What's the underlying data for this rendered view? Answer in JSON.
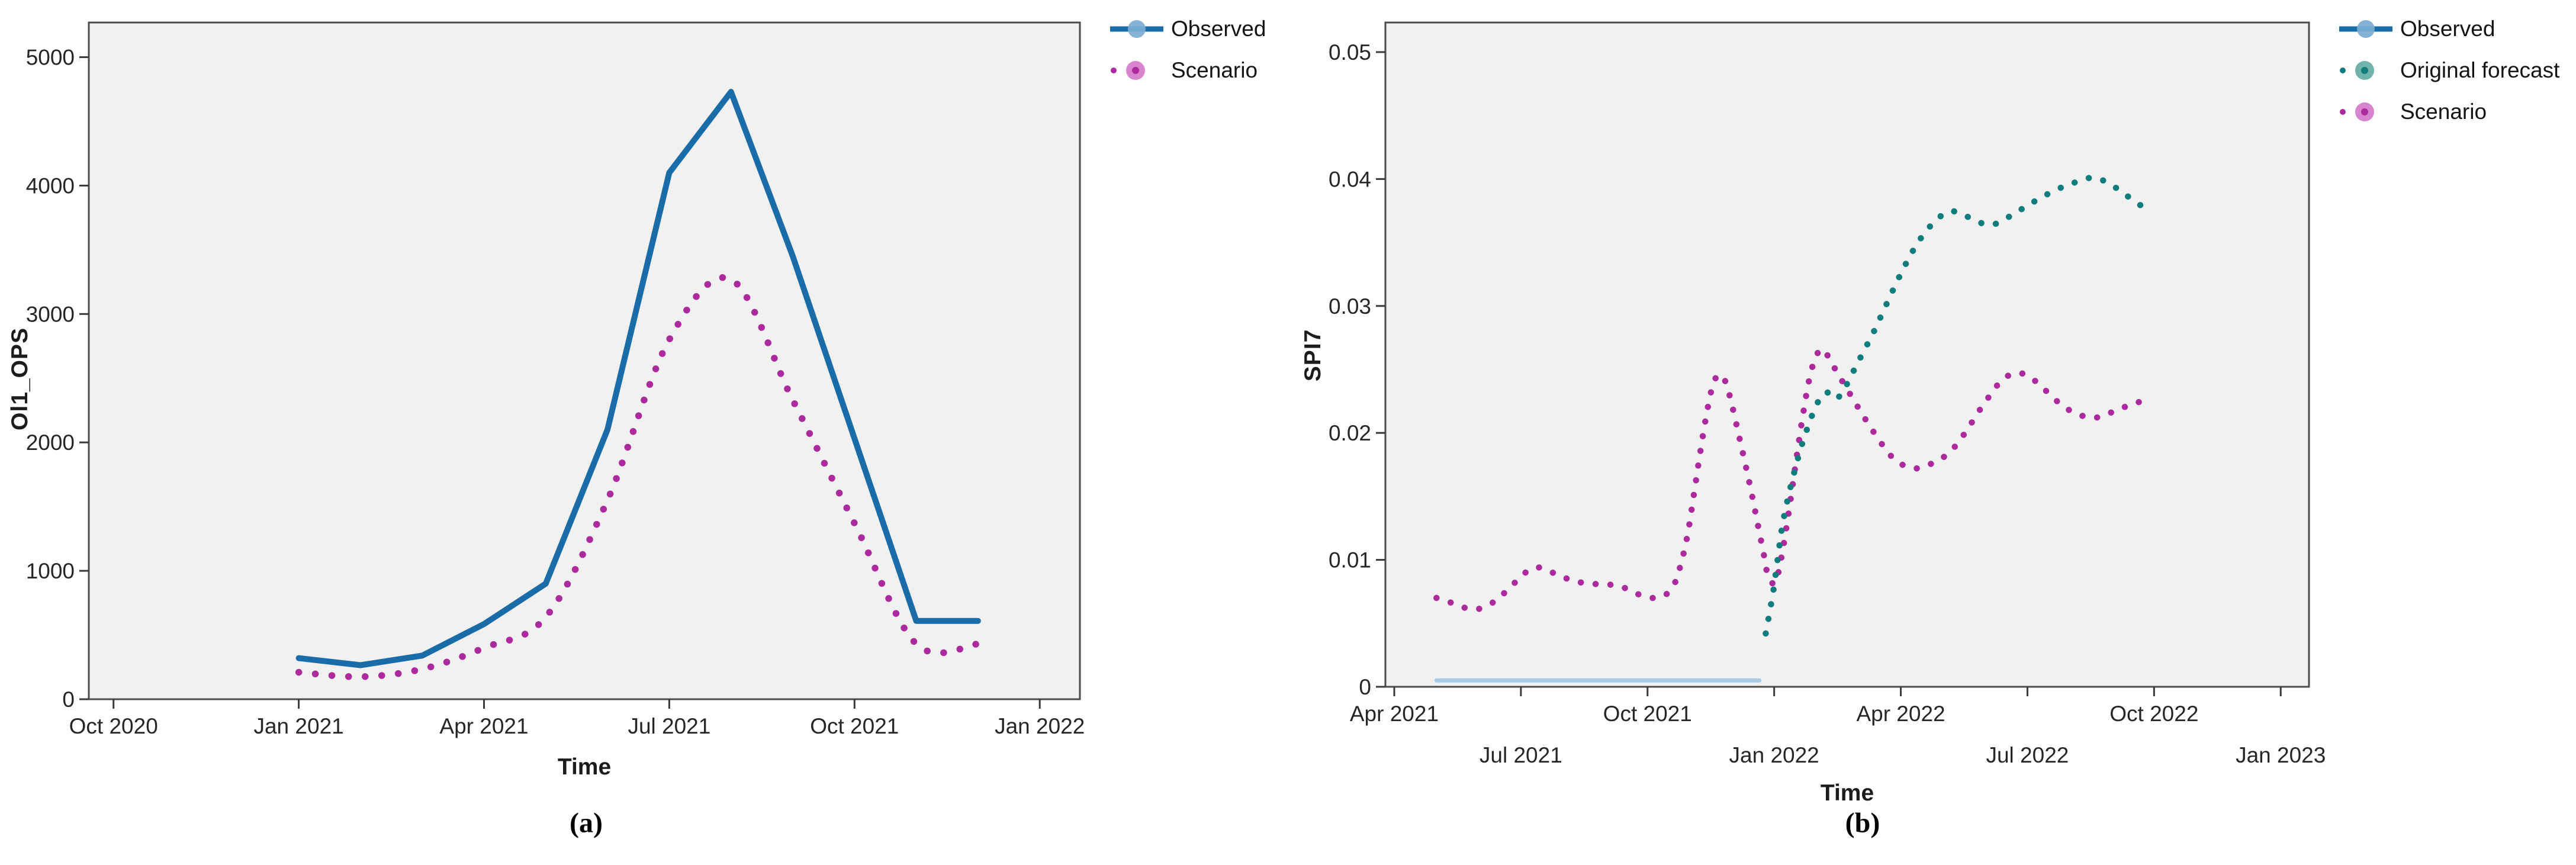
{
  "colors": {
    "observed_blue": "#1a6ca8",
    "observed_marker": "#7aadd4",
    "scenario_pink": "#ab2a9c",
    "scenario_marker": "#d478cb",
    "forecast_teal": "#117c7c",
    "forecast_marker": "#63aaa4",
    "observed_light_blue": "#a9cbe4",
    "plot_bg": "#f2f1f1",
    "frame": "#4c4c4c",
    "tick": "#3a3a3a",
    "text": "#262626"
  },
  "captions": {
    "a": "(a)",
    "b": "(b)"
  },
  "chart_data": [
    {
      "id": "a",
      "type": "line",
      "title": "",
      "xlabel": "Time",
      "ylabel": "Ol1_OPS",
      "caption": "(a)",
      "grid": false,
      "legend_position": "top-right-outside",
      "xlim": [
        -3.4,
        12.65
      ],
      "ylim": [
        0,
        5270
      ],
      "x_unit": "months from Jan 2021",
      "x_ticks": [
        {
          "m": -3,
          "label": "Oct 2020",
          "row": 0
        },
        {
          "m": 0,
          "label": "Jan 2021",
          "row": 0
        },
        {
          "m": 3,
          "label": "Apr 2021",
          "row": 0
        },
        {
          "m": 6,
          "label": "Jul 2021",
          "row": 0
        },
        {
          "m": 9,
          "label": "Oct 2021",
          "row": 0
        },
        {
          "m": 12,
          "label": "Jan 2022",
          "row": 0
        }
      ],
      "y_ticks": [
        {
          "v": 0,
          "label": "0"
        },
        {
          "v": 1000,
          "label": "1000"
        },
        {
          "v": 2000,
          "label": "2000"
        },
        {
          "v": 3000,
          "label": "3000"
        },
        {
          "v": 4000,
          "label": "4000"
        },
        {
          "v": 5000,
          "label": "5000"
        }
      ],
      "legend": [
        {
          "label": "Observed",
          "marker": "line-circle",
          "color": "observed_blue",
          "marker_fill": "observed_marker"
        },
        {
          "label": "Scenario",
          "marker": "dot-circle",
          "color": "scenario_pink",
          "marker_fill": "scenario_marker"
        }
      ],
      "series": [
        {
          "name": "Scenario",
          "style": "dots",
          "color": "scenario_pink",
          "width": 11.5,
          "gap": 28,
          "points": [
            [
              0,
              210
            ],
            [
              1,
              175
            ],
            [
              2,
              235
            ],
            [
              3,
              400
            ],
            [
              4,
              640
            ],
            [
              5,
              1550
            ],
            [
              6,
              2800
            ],
            [
              7,
              3270
            ],
            [
              8,
              2330
            ],
            [
              9,
              1370
            ],
            [
              10,
              430
            ],
            [
              11,
              430
            ]
          ]
        },
        {
          "name": "Observed",
          "style": "solid",
          "color": "observed_blue",
          "width": 10,
          "points": [
            [
              0,
              320
            ],
            [
              1,
              265
            ],
            [
              2,
              340
            ],
            [
              3,
              585
            ],
            [
              4,
              900
            ],
            [
              5,
              2100
            ],
            [
              6,
              4100
            ],
            [
              7,
              4730
            ],
            [
              8,
              3450
            ],
            [
              9,
              2030
            ],
            [
              10,
              610
            ],
            [
              11,
              610
            ]
          ]
        }
      ]
    },
    {
      "id": "b",
      "type": "line",
      "title": "",
      "xlabel": "Time",
      "ylabel": "SPI7",
      "caption": "(b)",
      "grid": false,
      "legend_position": "top-right-outside",
      "xlim": [
        -0.21,
        21.67
      ],
      "ylim": [
        0,
        0.05233
      ],
      "x_unit": "months from Apr 2021",
      "x_ticks": [
        {
          "m": 0,
          "label": "Apr 2021",
          "row": 0
        },
        {
          "m": 3,
          "label": "Jul 2021",
          "row": 1
        },
        {
          "m": 6,
          "label": "Oct 2021",
          "row": 0
        },
        {
          "m": 9,
          "label": "Jan 2022",
          "row": 1
        },
        {
          "m": 12,
          "label": "Apr 2022",
          "row": 0
        },
        {
          "m": 15,
          "label": "Jul 2022",
          "row": 1
        },
        {
          "m": 18,
          "label": "Oct 2022",
          "row": 0
        },
        {
          "m": 21,
          "label": "Jan 2023",
          "row": 1
        }
      ],
      "y_ticks": [
        {
          "v": 0,
          "label": "0"
        },
        {
          "v": 0.01,
          "label": "0.01"
        },
        {
          "v": 0.02,
          "label": "0.02"
        },
        {
          "v": 0.03,
          "label": "0.03"
        },
        {
          "v": 0.04,
          "label": "0.04"
        },
        {
          "v": 0.05,
          "label": "0.05"
        }
      ],
      "legend": [
        {
          "label": "Observed",
          "marker": "line-circle",
          "color": "observed_blue",
          "marker_fill": "observed_marker"
        },
        {
          "label": "Original forecast",
          "marker": "dot-circle",
          "color": "forecast_teal",
          "marker_fill": "forecast_marker"
        },
        {
          "label": "Scenario",
          "marker": "dot-circle",
          "color": "scenario_pink",
          "marker_fill": "scenario_marker"
        }
      ],
      "series": [
        {
          "name": "Observed",
          "style": "solid",
          "color": "observed_light_blue",
          "width": 7,
          "points": [
            [
              1.0,
              0.0005
            ],
            [
              8.65,
              0.0005
            ]
          ]
        },
        {
          "name": "Scenario",
          "style": "dots",
          "color": "scenario_pink",
          "width": 10.5,
          "gap": 25,
          "points": [
            [
              1.0,
              0.007
            ],
            [
              1.2,
              0.0068
            ],
            [
              1.45,
              0.0065
            ],
            [
              1.7,
              0.0062
            ],
            [
              1.95,
              0.0061
            ],
            [
              2.2,
              0.0064
            ],
            [
              2.45,
              0.0069
            ],
            [
              2.7,
              0.0077
            ],
            [
              2.95,
              0.0085
            ],
            [
              3.15,
              0.0091
            ],
            [
              3.35,
              0.0094
            ],
            [
              3.55,
              0.0093
            ],
            [
              3.75,
              0.009
            ],
            [
              3.95,
              0.0087
            ],
            [
              4.2,
              0.0084
            ],
            [
              4.45,
              0.0082
            ],
            [
              4.7,
              0.0081
            ],
            [
              4.95,
              0.0081
            ],
            [
              5.2,
              0.008
            ],
            [
              5.45,
              0.0078
            ],
            [
              5.7,
              0.0074
            ],
            [
              5.95,
              0.0071
            ],
            [
              6.2,
              0.007
            ],
            [
              6.45,
              0.0073
            ],
            [
              6.65,
              0.0082
            ],
            [
              6.8,
              0.0098
            ],
            [
              6.95,
              0.012
            ],
            [
              7.1,
              0.0152
            ],
            [
              7.25,
              0.0185
            ],
            [
              7.4,
              0.0215
            ],
            [
              7.55,
              0.0238
            ],
            [
              7.7,
              0.0246
            ],
            [
              7.85,
              0.024
            ],
            [
              8.0,
              0.0222
            ],
            [
              8.15,
              0.02
            ],
            [
              8.3,
              0.0178
            ],
            [
              8.45,
              0.0155
            ],
            [
              8.6,
              0.013
            ],
            [
              8.75,
              0.0105
            ],
            [
              8.85,
              0.0088
            ],
            [
              9.0,
              0.0081
            ],
            [
              9.1,
              0.009
            ],
            [
              9.25,
              0.0117
            ],
            [
              9.4,
              0.015
            ],
            [
              9.55,
              0.0185
            ],
            [
              9.7,
              0.0218
            ],
            [
              9.85,
              0.0245
            ],
            [
              10.0,
              0.0261
            ],
            [
              10.15,
              0.0266
            ],
            [
              10.3,
              0.0259
            ],
            [
              10.5,
              0.0247
            ],
            [
              10.7,
              0.0236
            ],
            [
              10.9,
              0.0225
            ],
            [
              11.1,
              0.0214
            ],
            [
              11.35,
              0.0201
            ],
            [
              11.6,
              0.0189
            ],
            [
              11.85,
              0.0179
            ],
            [
              12.1,
              0.0174
            ],
            [
              12.35,
              0.0172
            ],
            [
              12.6,
              0.0174
            ],
            [
              12.85,
              0.0178
            ],
            [
              13.1,
              0.0183
            ],
            [
              13.35,
              0.0192
            ],
            [
              13.6,
              0.0204
            ],
            [
              13.85,
              0.0217
            ],
            [
              14.1,
              0.0229
            ],
            [
              14.35,
              0.024
            ],
            [
              14.6,
              0.0246
            ],
            [
              14.85,
              0.0247
            ],
            [
              15.1,
              0.0243
            ],
            [
              15.35,
              0.0236
            ],
            [
              15.6,
              0.0228
            ],
            [
              15.85,
              0.0221
            ],
            [
              16.1,
              0.0216
            ],
            [
              16.35,
              0.0213
            ],
            [
              16.6,
              0.0212
            ],
            [
              16.85,
              0.0214
            ],
            [
              17.1,
              0.0218
            ],
            [
              17.35,
              0.0221
            ],
            [
              17.6,
              0.0224
            ],
            [
              17.85,
              0.0225
            ]
          ]
        },
        {
          "name": "Original forecast",
          "style": "dots",
          "color": "forecast_teal",
          "width": 10.5,
          "gap": 25,
          "points": [
            [
              8.8,
              0.0042
            ],
            [
              8.9,
              0.006
            ],
            [
              9.0,
              0.008
            ],
            [
              9.1,
              0.0105
            ],
            [
              9.2,
              0.0128
            ],
            [
              9.35,
              0.0152
            ],
            [
              9.5,
              0.0172
            ],
            [
              9.65,
              0.019
            ],
            [
              9.8,
              0.0205
            ],
            [
              9.95,
              0.0218
            ],
            [
              10.1,
              0.0228
            ],
            [
              10.25,
              0.0232
            ],
            [
              10.4,
              0.0227
            ],
            [
              10.55,
              0.0229
            ],
            [
              10.7,
              0.0237
            ],
            [
              10.9,
              0.025
            ],
            [
              11.1,
              0.0263
            ],
            [
              11.35,
              0.0279
            ],
            [
              11.6,
              0.0297
            ],
            [
              11.85,
              0.0315
            ],
            [
              12.1,
              0.0332
            ],
            [
              12.35,
              0.0347
            ],
            [
              12.6,
              0.0359
            ],
            [
              12.85,
              0.0368
            ],
            [
              13.1,
              0.0374
            ],
            [
              13.35,
              0.0374
            ],
            [
              13.6,
              0.037
            ],
            [
              13.85,
              0.0366
            ],
            [
              14.1,
              0.0364
            ],
            [
              14.35,
              0.0366
            ],
            [
              14.6,
              0.0371
            ],
            [
              14.85,
              0.0376
            ],
            [
              15.1,
              0.0381
            ],
            [
              15.35,
              0.0386
            ],
            [
              15.6,
              0.039
            ],
            [
              15.85,
              0.0394
            ],
            [
              16.1,
              0.0397
            ],
            [
              16.35,
              0.04
            ],
            [
              16.6,
              0.0401
            ],
            [
              16.85,
              0.0398
            ],
            [
              17.1,
              0.0393
            ],
            [
              17.35,
              0.0387
            ],
            [
              17.6,
              0.0381
            ],
            [
              17.8,
              0.0377
            ]
          ]
        }
      ]
    }
  ]
}
